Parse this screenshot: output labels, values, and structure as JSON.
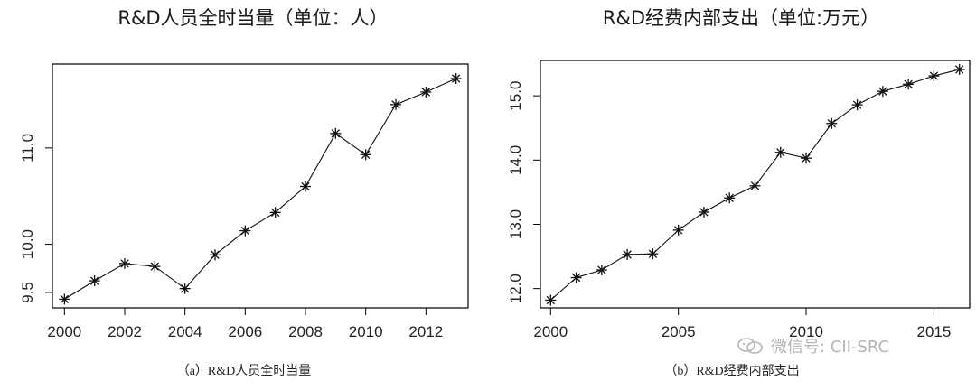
{
  "chart_data": [
    {
      "type": "line",
      "title": "R&D人员全时当量（单位：人）",
      "caption": "（a）R&D人员全时当量",
      "marker": "asterisk",
      "x": [
        2000,
        2001,
        2002,
        2003,
        2004,
        2005,
        2006,
        2007,
        2008,
        2009,
        2010,
        2011,
        2012,
        2013
      ],
      "y": [
        9.43,
        9.62,
        9.8,
        9.77,
        9.54,
        9.89,
        10.14,
        10.33,
        10.6,
        11.15,
        10.93,
        11.45,
        11.58,
        11.72
      ],
      "xticks": [
        "2000",
        "2002",
        "2004",
        "2006",
        "2008",
        "2010",
        "2012"
      ],
      "yticks": [
        "9.5",
        "10.0",
        "11.0"
      ],
      "xlim": [
        1999.6,
        2013.4
      ],
      "ylim": [
        9.34,
        11.87
      ],
      "grid": false
    },
    {
      "type": "line",
      "title": "R&D经费内部支出（单位:万元）",
      "caption": "（b）R&D经费内部支出",
      "marker": "asterisk",
      "x": [
        2000,
        2001,
        2002,
        2003,
        2004,
        2005,
        2006,
        2007,
        2008,
        2009,
        2010,
        2011,
        2012,
        2013,
        2014,
        2015,
        2016
      ],
      "y": [
        11.82,
        12.17,
        12.29,
        12.53,
        12.54,
        12.91,
        13.19,
        13.41,
        13.6,
        14.12,
        14.03,
        14.57,
        14.86,
        15.07,
        15.18,
        15.31,
        15.41
      ],
      "xticks": [
        "2000",
        "2005",
        "2010",
        "2015"
      ],
      "yticks": [
        "12.0",
        "13.0",
        "14.0",
        "15.0"
      ],
      "xlim": [
        1999.6,
        2016.4
      ],
      "ylim": [
        11.7,
        15.55
      ],
      "grid": false
    }
  ],
  "watermark": {
    "text": "微信号: CII-SRC",
    "icon": "wechat-icon"
  }
}
